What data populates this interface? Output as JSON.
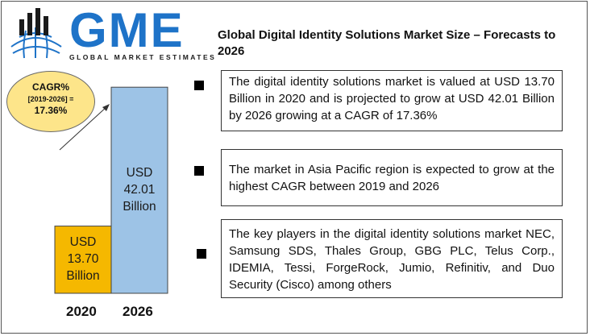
{
  "brand": {
    "name": "GME",
    "tagline": "GLOBAL MARKET ESTIMATES",
    "colors": {
      "primary": "#1e73c8",
      "dark": "#1a1a1a"
    }
  },
  "title": "Global Digital Identity Solutions Market Size – Forecasts to 2026",
  "cagr": {
    "label": "CAGR%",
    "period": "[2019-2026] =",
    "value": "17.36%",
    "color": "#fde58a"
  },
  "chart_data": {
    "type": "bar",
    "categories": [
      "2020",
      "2026"
    ],
    "values": [
      13.7,
      42.01
    ],
    "ylim": [
      0,
      45
    ],
    "grid": false,
    "colors": [
      "#f5b800",
      "#9dc3e6"
    ],
    "data_labels": [
      [
        "USD",
        "13.70",
        "Billion"
      ],
      [
        "USD",
        "42.01",
        "Billion"
      ]
    ]
  },
  "bullets": [
    "The digital identity solutions market is valued at USD 13.70 Billion in 2020 and is projected to grow at USD 42.01 Billion by 2026 growing at a CAGR of 17.36%",
    "The market in Asia Pacific region is expected to grow at the highest CAGR between 2019 and 2026",
    "The key players in the digital identity solutions market NEC, Samsung SDS, Thales Group, GBG PLC, Telus Corp., IDEMIA, Tessi, ForgeRock, Jumio, Refinitiv, and Duo Security (Cisco) among others"
  ]
}
